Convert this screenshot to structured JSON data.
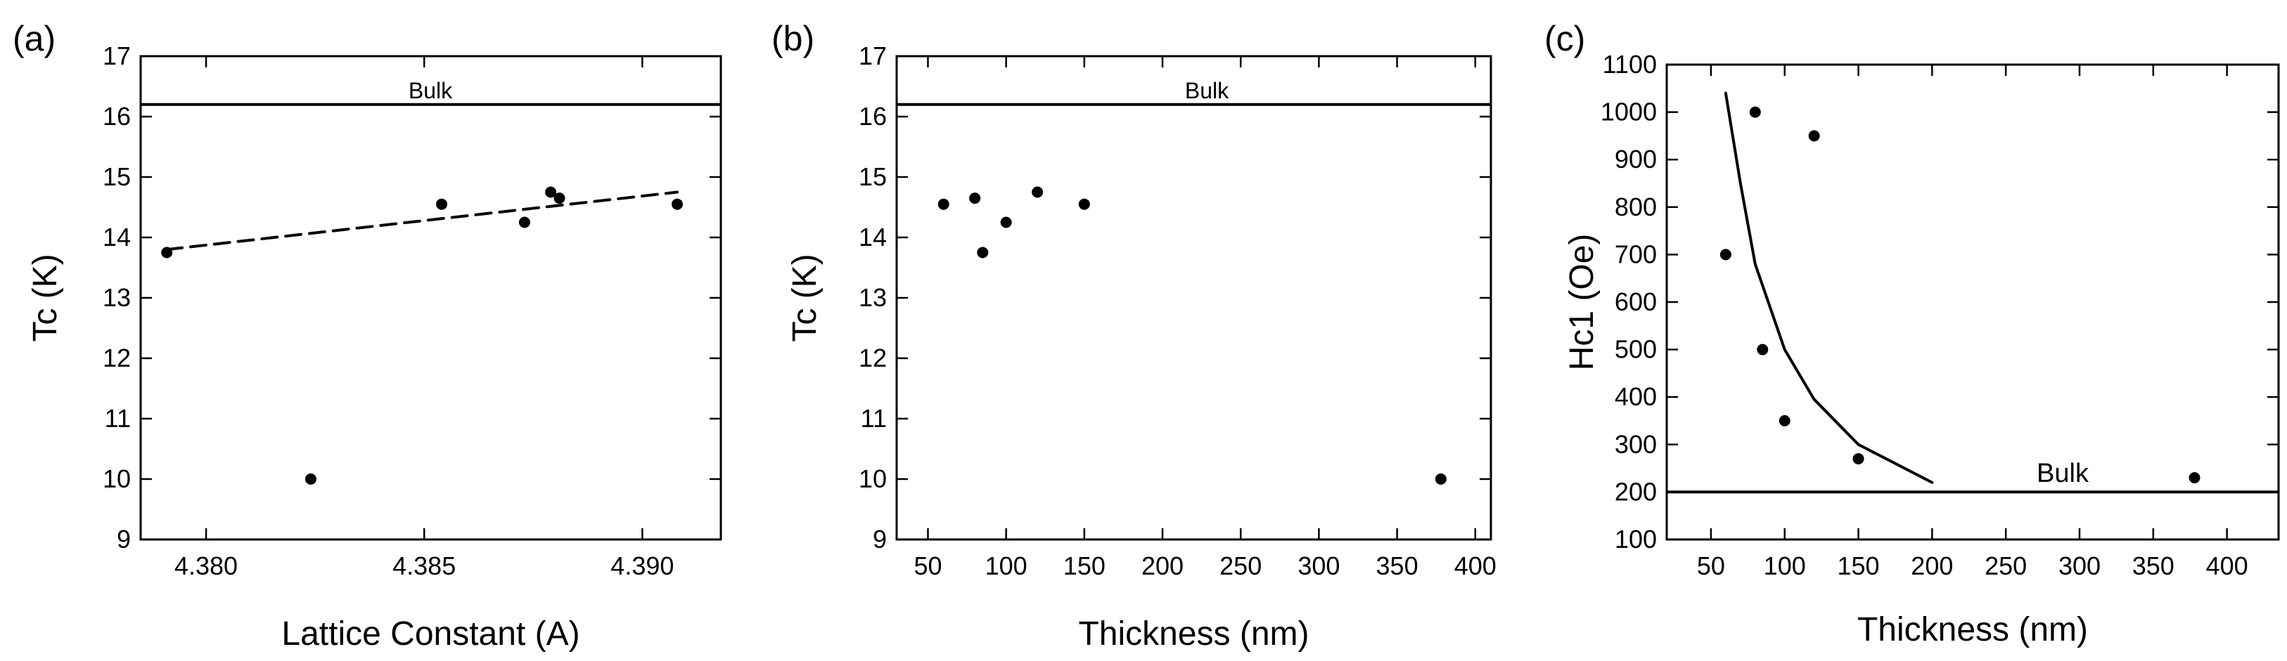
{
  "figure": {
    "colors": {
      "ink": "#000000",
      "background": "#ffffff"
    }
  },
  "chart_data": [
    {
      "type": "scatter",
      "panel_label": "(a)",
      "title": "",
      "xlabel": "Lattice Constant (A)",
      "ylabel": "Tc (K)",
      "xlim": [
        4.3785,
        4.3918
      ],
      "ylim": [
        9,
        17
      ],
      "xticks": [
        "4.380",
        "4.385",
        "4.390"
      ],
      "yticks": [
        "9",
        "10",
        "11",
        "12",
        "13",
        "14",
        "15",
        "16",
        "17"
      ],
      "grid": false,
      "series": [
        {
          "style": "points",
          "x": [
            4.3791,
            4.3824,
            4.3854,
            4.3873,
            4.3879,
            4.3881,
            4.3908
          ],
          "y": [
            13.75,
            10.0,
            14.55,
            14.25,
            14.75,
            14.65,
            14.55
          ]
        },
        {
          "style": "dashed-line",
          "x": [
            4.3791,
            4.3908
          ],
          "y": [
            13.8,
            14.75
          ]
        }
      ],
      "reference_line": {
        "label": "Bulk",
        "y": 16.2
      }
    },
    {
      "type": "scatter",
      "panel_label": "(b)",
      "title": "",
      "xlabel": "Thickness (nm)",
      "ylabel": "Tc (K)",
      "xlim": [
        30,
        410
      ],
      "ylim": [
        9,
        17
      ],
      "xticks": [
        "50",
        "100",
        "150",
        "200",
        "250",
        "300",
        "350",
        "400"
      ],
      "yticks": [
        "9",
        "10",
        "11",
        "12",
        "13",
        "14",
        "15",
        "16",
        "17"
      ],
      "grid": false,
      "series": [
        {
          "style": "points",
          "x": [
            60,
            80,
            85,
            100,
            120,
            150,
            378
          ],
          "y": [
            14.55,
            14.65,
            13.75,
            14.25,
            14.75,
            14.55,
            10.0
          ]
        }
      ],
      "reference_line": {
        "label": "Bulk",
        "y": 16.2
      }
    },
    {
      "type": "scatter",
      "panel_label": "(c)",
      "title": "",
      "xlabel": "Thickness (nm)",
      "ylabel": "Hc1 (Oe)",
      "xlim": [
        20,
        435
      ],
      "ylim": [
        100,
        1100
      ],
      "xticks": [
        "50",
        "100",
        "150",
        "200",
        "250",
        "300",
        "350",
        "400"
      ],
      "yticks": [
        "100",
        "200",
        "300",
        "400",
        "500",
        "600",
        "700",
        "800",
        "900",
        "1000",
        "1100"
      ],
      "grid": false,
      "series": [
        {
          "style": "points",
          "x": [
            60,
            80,
            85,
            100,
            120,
            150,
            378
          ],
          "y": [
            700,
            1000,
            500,
            350,
            950,
            270,
            230
          ]
        },
        {
          "style": "solid-line",
          "x": [
            60,
            70,
            80,
            100,
            120,
            150,
            200
          ],
          "y": [
            1040,
            850,
            680,
            500,
            395,
            300,
            220
          ]
        }
      ],
      "reference_line": {
        "label": "Bulk",
        "y": 200
      }
    }
  ]
}
